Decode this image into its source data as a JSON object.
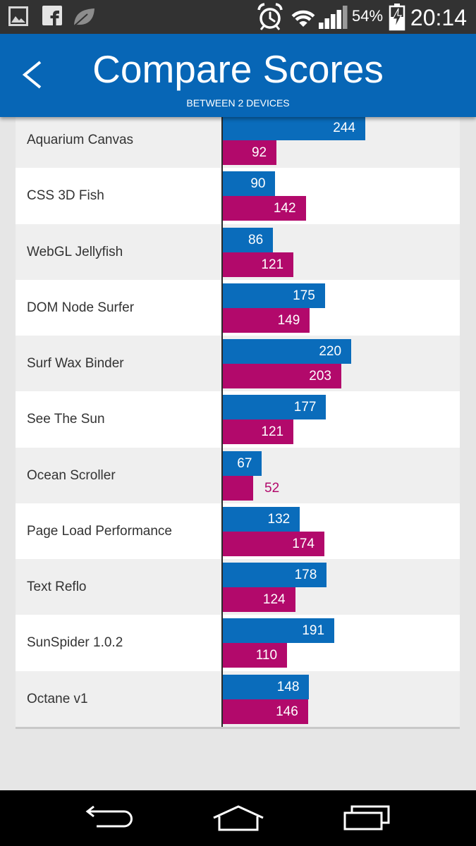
{
  "status_bar": {
    "notification_icons": [
      "gallery-icon",
      "facebook-icon",
      "leaf-icon"
    ],
    "system_icons": [
      "alarm-icon",
      "wifi-icon",
      "signal-icon",
      "battery-charging-icon"
    ],
    "battery_percent": "54%",
    "time": "20:14",
    "background_color": "#323232"
  },
  "header": {
    "back_icon": "chevron-left-icon",
    "title": "Compare Scores",
    "subtitle": "BETWEEN 2 DEVICES",
    "background_color": "#0766b6"
  },
  "chart_data": {
    "type": "bar",
    "orientation": "horizontal",
    "categories": [
      "Aquarium Canvas",
      "CSS 3D Fish",
      "WebGL Jellyfish",
      "DOM Node Surfer",
      "Surf Wax Binder",
      "See The Sun",
      "Ocean Scroller",
      "Page Load Performance",
      "Text Reflo",
      "SunSpider 1.0.2",
      "Octane v1"
    ],
    "series": [
      {
        "color": "#0a6cbb",
        "values": [
          244,
          90,
          86,
          175,
          220,
          177,
          67,
          132,
          178,
          191,
          148
        ]
      },
      {
        "color": "#b2096b",
        "values": [
          92,
          142,
          121,
          149,
          203,
          121,
          52,
          174,
          124,
          110,
          146
        ]
      }
    ],
    "xlim": [
      0,
      406
    ],
    "grid": false,
    "legend": false
  },
  "nav_bar": {
    "icons": [
      "back-icon",
      "home-icon",
      "recent-apps-icon"
    ],
    "background_color": "#000000"
  }
}
